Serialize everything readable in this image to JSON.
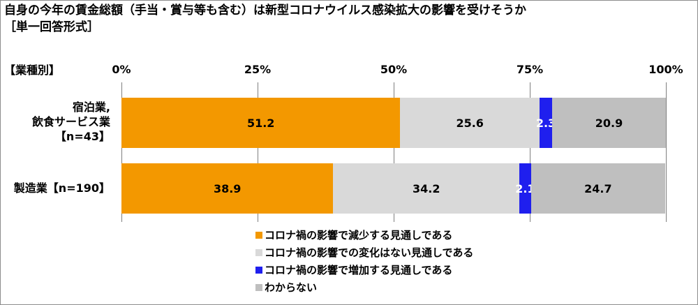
{
  "title": "自身の今年の賃金総額（手当・賞与等も含む）は新型コロナウイルス感染拡大の影響を受けそうか",
  "subtitle": "［単一回答形式］",
  "category_header": "【業種別】",
  "colors": {
    "decrease": "#f39800",
    "no_change": "#d9d9d9",
    "increase": "#1f1fee",
    "unknown": "#bfbfbf"
  },
  "chart_data": {
    "type": "bar",
    "orientation": "horizontal",
    "stacked": true,
    "title": "自身の今年の賃金総額（手当・賞与等も含む）は新型コロナウイルス感染拡大の影響を受けそうか",
    "subtitle": "［単一回答形式］",
    "xlim": [
      0,
      100
    ],
    "ticks": [
      "0%",
      "25%",
      "50%",
      "75%",
      "100%"
    ],
    "tick_values": [
      0,
      25,
      50,
      75,
      100
    ],
    "grid": true,
    "legend_position": "bottom",
    "categories": [
      [
        "宿泊業,",
        "飲食サービス業",
        "【n=43】"
      ],
      [
        "製造業【n=190】"
      ]
    ],
    "series": [
      {
        "name": "コロナ禍の影響で減少する見通しである",
        "key": "decrease",
        "values": [
          51.2,
          38.9
        ]
      },
      {
        "name": "コロナ禍の影響での変化はない見通しである",
        "key": "no_change",
        "values": [
          25.6,
          34.2
        ]
      },
      {
        "name": "コロナ禍の影響で増加する見通しである",
        "key": "increase",
        "values": [
          2.3,
          2.1
        ]
      },
      {
        "name": "わからない",
        "key": "unknown",
        "values": [
          20.9,
          24.7
        ]
      }
    ]
  }
}
